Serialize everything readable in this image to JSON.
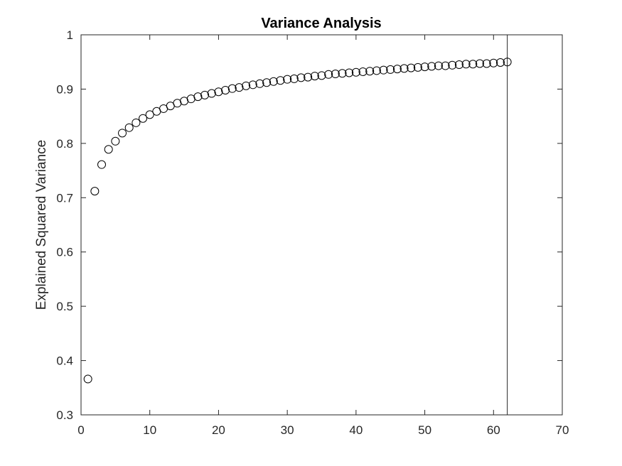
{
  "chart_data": {
    "type": "scatter",
    "title": "Variance Analysis",
    "xlabel": "",
    "ylabel": "Explained Squared Variance",
    "xlim": [
      0,
      70
    ],
    "ylim": [
      0.3,
      1
    ],
    "xticks": [
      "0",
      "10",
      "20",
      "30",
      "40",
      "50",
      "60",
      "70"
    ],
    "yticks": [
      "0.3",
      "0.4",
      "0.5",
      "0.6",
      "0.7",
      "0.8",
      "0.9",
      "1"
    ],
    "grid": false,
    "legend": "none",
    "marker": "open-circle",
    "marker_color": "#000000",
    "reference_line_x": 62,
    "series": [
      {
        "x": [
          1,
          2,
          3,
          4,
          5,
          6,
          7,
          8,
          9,
          10,
          11,
          12,
          13,
          14,
          15,
          16,
          17,
          18,
          19,
          20,
          21,
          22,
          23,
          24,
          25,
          26,
          27,
          28,
          29,
          30,
          31,
          32,
          33,
          34,
          35,
          36,
          37,
          38,
          39,
          40,
          41,
          42,
          43,
          44,
          45,
          46,
          47,
          48,
          49,
          50,
          51,
          52,
          53,
          54,
          55,
          56,
          57,
          58,
          59,
          60,
          61,
          62
        ],
        "y": [
          0.366,
          0.712,
          0.761,
          0.789,
          0.804,
          0.819,
          0.829,
          0.838,
          0.846,
          0.853,
          0.859,
          0.864,
          0.869,
          0.874,
          0.878,
          0.882,
          0.886,
          0.889,
          0.892,
          0.895,
          0.898,
          0.901,
          0.903,
          0.906,
          0.908,
          0.91,
          0.912,
          0.914,
          0.916,
          0.918,
          0.919,
          0.921,
          0.922,
          0.924,
          0.925,
          0.927,
          0.928,
          0.929,
          0.93,
          0.931,
          0.932,
          0.933,
          0.934,
          0.935,
          0.936,
          0.937,
          0.938,
          0.939,
          0.94,
          0.941,
          0.942,
          0.943,
          0.943,
          0.944,
          0.945,
          0.946,
          0.946,
          0.947,
          0.947,
          0.948,
          0.949,
          0.95
        ]
      }
    ]
  }
}
